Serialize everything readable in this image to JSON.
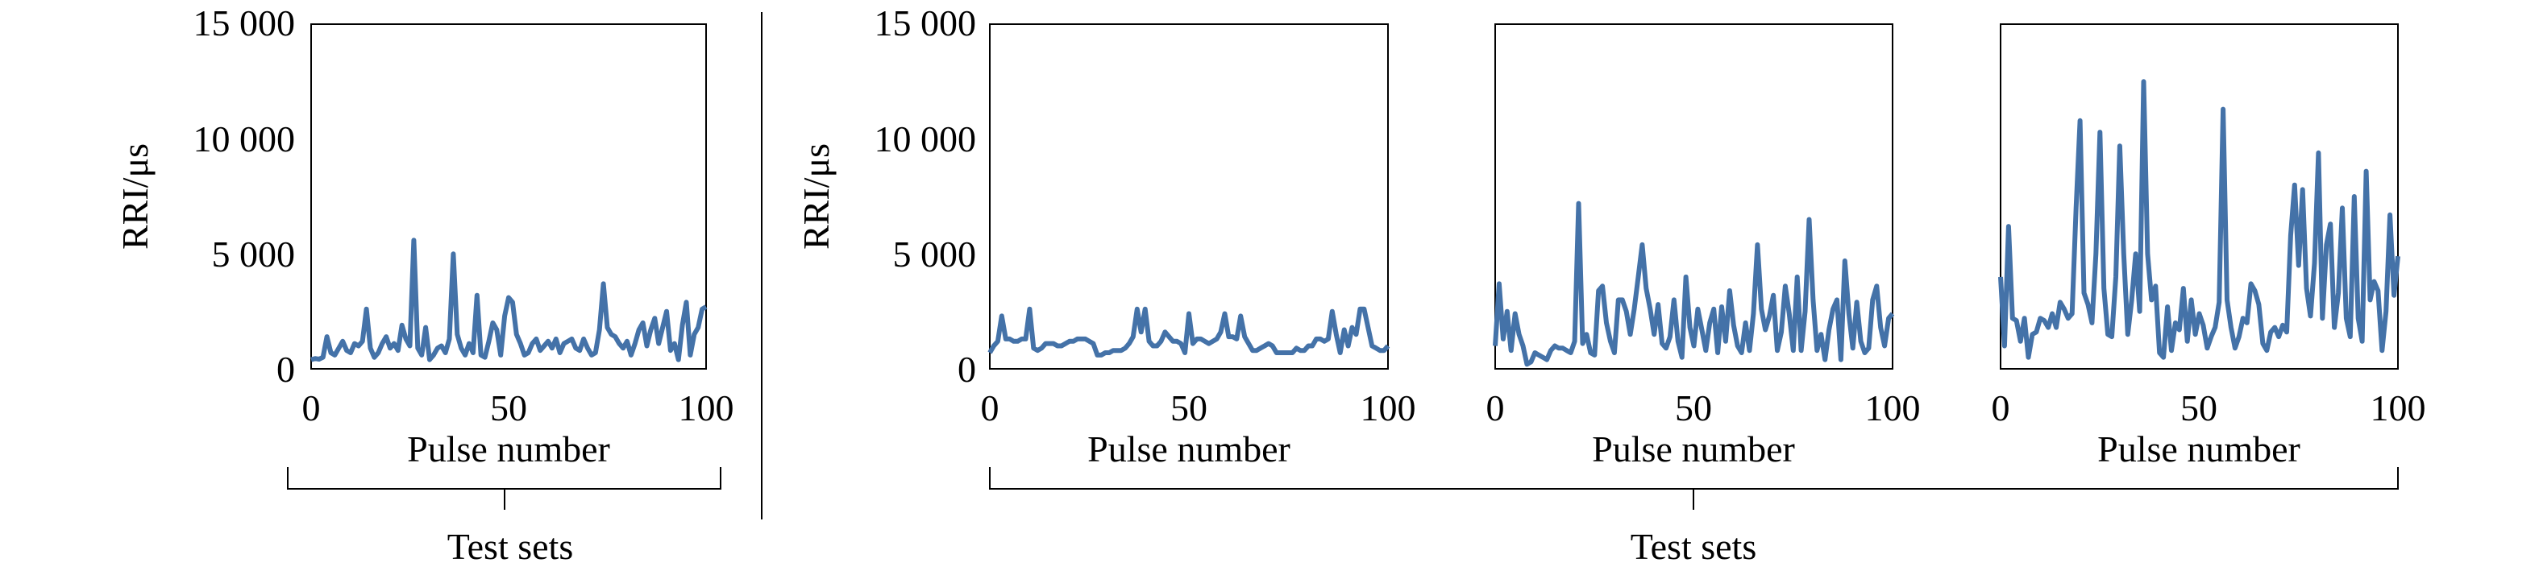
{
  "chart_data": [
    {
      "type": "line",
      "ylabel": "RRI/μs",
      "xlabel": "Pulse number",
      "xlim": [
        0,
        100
      ],
      "ylim": [
        0,
        15000
      ],
      "x_ticks": [
        "0",
        "50",
        "100"
      ],
      "y_ticks": [
        "0",
        "5 000",
        "10 000",
        "15 000"
      ],
      "color": "#4472a8",
      "series": [
        {
          "values": [
            400,
            450,
            420,
            500,
            1400,
            700,
            600,
            900,
            1200,
            800,
            700,
            1100,
            1000,
            1200,
            2600,
            900,
            500,
            700,
            1100,
            1400,
            900,
            1100,
            800,
            1900,
            1300,
            1000,
            5600,
            900,
            600,
            1800,
            400,
            600,
            900,
            1000,
            700,
            1300,
            5000,
            1500,
            900,
            600,
            1100,
            700,
            3200,
            600,
            500,
            1200,
            2000,
            1700,
            600,
            2300,
            3100,
            2900,
            1500,
            1100,
            600,
            700,
            1100,
            1300,
            800,
            1000,
            1200,
            900,
            1300,
            700,
            1100,
            1200,
            1300,
            900,
            800,
            1300,
            900,
            600,
            700,
            1700,
            3700,
            1800,
            1500,
            1400,
            1100,
            900,
            1200,
            600,
            1100,
            1700,
            2000,
            1000,
            1700,
            2200,
            1100,
            1800,
            2500,
            800,
            1100,
            400,
            1900,
            2900,
            600,
            1500,
            1800,
            2600,
            2700
          ]
        }
      ]
    },
    {
      "type": "line",
      "ylabel": "RRI/μs",
      "xlabel": "Pulse number",
      "xlim": [
        0,
        100
      ],
      "ylim": [
        0,
        15000
      ],
      "x_ticks": [
        "0",
        "50",
        "100"
      ],
      "y_ticks": [
        "0",
        "5 000",
        "10 000",
        "15 000"
      ],
      "color": "#4472a8",
      "series": [
        {
          "values": [
            700,
            1000,
            1200,
            2300,
            1300,
            1300,
            1200,
            1200,
            1300,
            1300,
            2600,
            900,
            800,
            900,
            1100,
            1100,
            1100,
            1000,
            1000,
            1100,
            1200,
            1200,
            1300,
            1300,
            1300,
            1200,
            1100,
            600,
            600,
            700,
            700,
            800,
            800,
            800,
            900,
            1100,
            1400,
            2600,
            1600,
            2600,
            1200,
            1000,
            1000,
            1200,
            1600,
            1400,
            1200,
            1200,
            1100,
            700,
            2400,
            1100,
            1300,
            1300,
            1200,
            1100,
            1200,
            1300,
            1600,
            2400,
            1400,
            1400,
            1300,
            2300,
            1400,
            1100,
            800,
            800,
            900,
            1000,
            1100,
            1000,
            700,
            700,
            700,
            700,
            700,
            900,
            800,
            800,
            1000,
            1000,
            1300,
            1300,
            1200,
            1300,
            2500,
            1500,
            700,
            1700,
            1000,
            1800,
            1500,
            2600,
            2600,
            1800,
            1000,
            900,
            800,
            800,
            1000
          ]
        }
      ]
    },
    {
      "type": "line",
      "xlabel": "Pulse number",
      "xlim": [
        0,
        100
      ],
      "ylim": [
        0,
        15000
      ],
      "x_ticks": [
        "0",
        "50",
        "100"
      ],
      "color": "#4472a8",
      "series": [
        {
          "values": [
            1000,
            3700,
            1300,
            2500,
            800,
            2400,
            1500,
            1000,
            200,
            300,
            700,
            600,
            500,
            400,
            800,
            1000,
            900,
            900,
            800,
            700,
            1200,
            7200,
            1100,
            1500,
            700,
            600,
            3400,
            3600,
            2000,
            1200,
            700,
            3000,
            3000,
            2500,
            1500,
            2600,
            4000,
            5400,
            3500,
            2600,
            1500,
            2800,
            1100,
            900,
            1400,
            3000,
            1200,
            500,
            4000,
            1800,
            1000,
            2600,
            1700,
            800,
            2000,
            2600,
            700,
            2700,
            1200,
            3400,
            1900,
            1000,
            700,
            2000,
            800,
            2400,
            5400,
            2600,
            1700,
            2300,
            3200,
            800,
            1600,
            3600,
            2400,
            800,
            4000,
            800,
            2500,
            6500,
            3000,
            800,
            1500,
            400,
            1700,
            2600,
            3000,
            400,
            4700,
            2400,
            900,
            2900,
            1200,
            700,
            900,
            3000,
            3600,
            1800,
            1000,
            2200,
            2400
          ]
        }
      ]
    },
    {
      "type": "line",
      "xlabel": "Pulse number",
      "xlim": [
        0,
        100
      ],
      "ylim": [
        0,
        15000
      ],
      "x_ticks": [
        "0",
        "50",
        "100"
      ],
      "color": "#4472a8",
      "series": [
        {
          "values": [
            4000,
            1000,
            6200,
            2200,
            2100,
            1200,
            2200,
            500,
            1500,
            1600,
            2200,
            2100,
            1800,
            2400,
            1800,
            2900,
            2600,
            2200,
            2400,
            7000,
            10800,
            3300,
            2800,
            2000,
            5000,
            10300,
            3500,
            1500,
            1400,
            4000,
            9700,
            5000,
            1500,
            3000,
            5000,
            2500,
            12500,
            5000,
            3000,
            3600,
            700,
            500,
            2700,
            800,
            2000,
            1700,
            3500,
            1200,
            3000,
            1500,
            2400,
            1900,
            900,
            1400,
            1800,
            2900,
            11300,
            3000,
            1800,
            900,
            1400,
            2200,
            2000,
            3700,
            3400,
            2800,
            1100,
            800,
            1600,
            1800,
            1400,
            1900,
            1600,
            5800,
            8000,
            4500,
            7800,
            3500,
            2300,
            4600,
            9400,
            2200,
            5400,
            6300,
            1800,
            3300,
            7000,
            2200,
            1400,
            7500,
            2200,
            1200,
            8600,
            3000,
            3800,
            3400,
            800,
            2500,
            6700,
            3200,
            4900
          ]
        }
      ]
    }
  ],
  "group_labels": [
    "Test sets",
    "Test sets"
  ]
}
